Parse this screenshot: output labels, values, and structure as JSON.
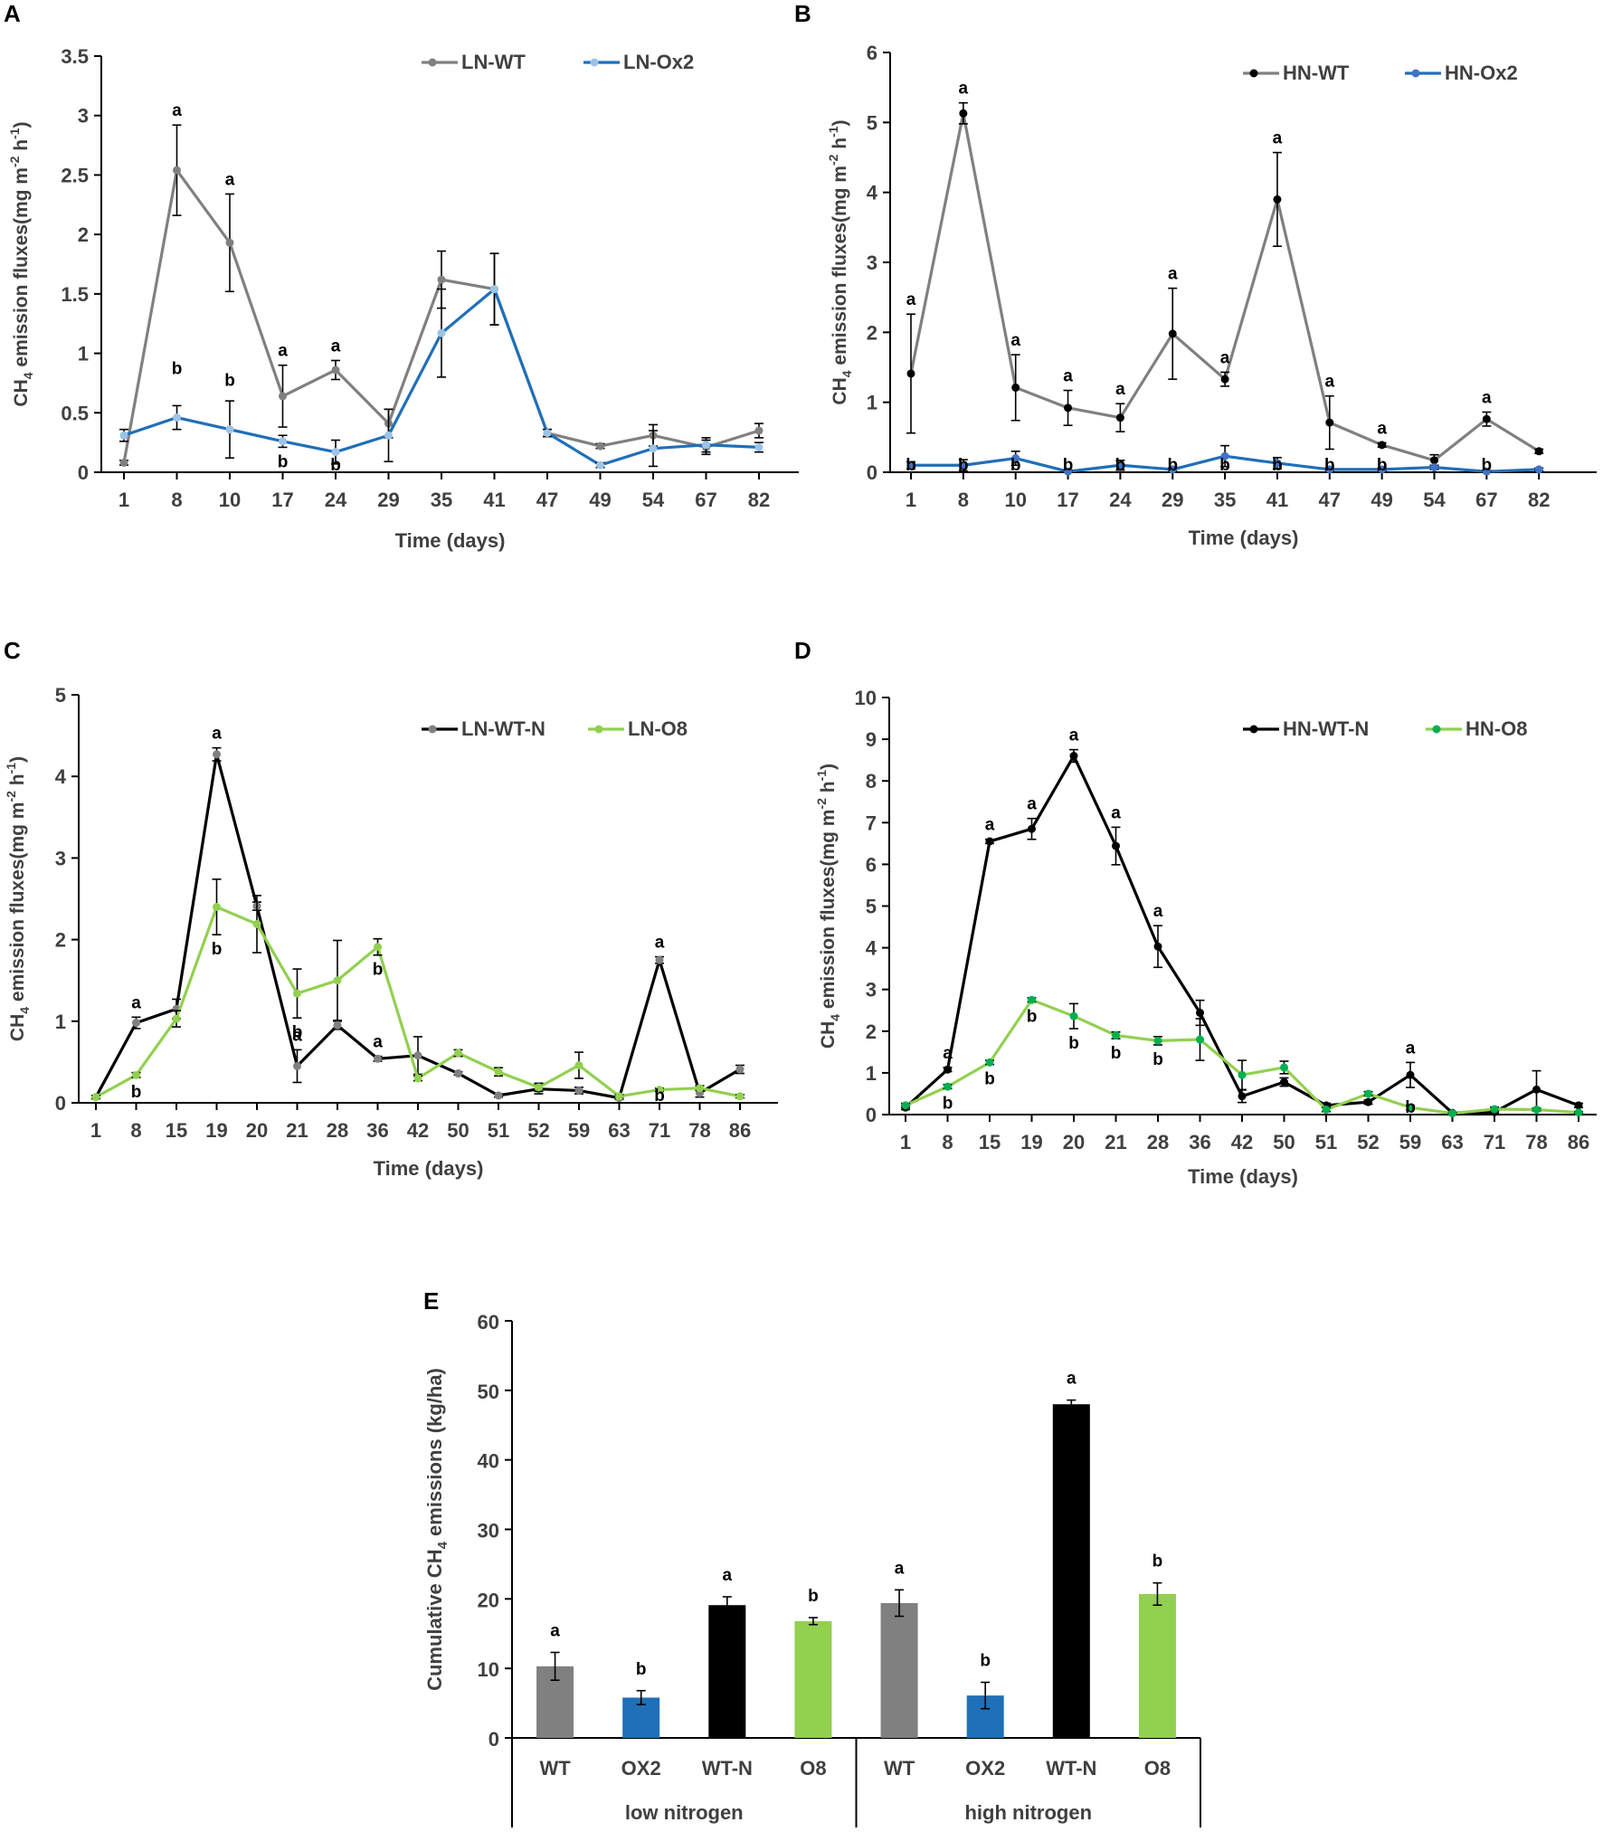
{
  "chart_data": [
    {
      "panel": "A",
      "type": "line",
      "ylabel_main": "CH",
      "ylabel_sub": "4",
      "ylabel_rest": " emission fluxes(mg m",
      "ylabel_sup1": "-2",
      "ylabel_mid": " h",
      "ylabel_sup2": "-1",
      "ylabel_end": ")",
      "xlabel": "Time (days)",
      "ylim": [
        0,
        3.5
      ],
      "yticks": [
        "0",
        "0.5",
        "1",
        "1.5",
        "2",
        "2.5",
        "3",
        "3.5"
      ],
      "categories": [
        "1",
        "8",
        "10",
        "17",
        "24",
        "29",
        "35",
        "41",
        "47",
        "49",
        "54",
        "67",
        "82"
      ],
      "series": [
        {
          "name": "LN-WT",
          "color": "#808080",
          "marker": "#808080",
          "values": [
            0.08,
            2.54,
            1.93,
            0.64,
            0.86,
            0.41,
            1.62,
            1.54,
            0.33,
            0.22,
            0.31,
            0.21,
            0.35
          ],
          "errors": [
            0.02,
            0.38,
            0.41,
            0.26,
            0.08,
            0.12,
            0.24,
            0.3,
            0.03,
            0.02,
            0.09,
            0.06,
            0.06
          ],
          "labels": [
            "",
            "a",
            "a",
            "a",
            "a",
            "",
            "",
            "",
            "",
            "",
            "",
            "",
            ""
          ]
        },
        {
          "name": "LN-Ox2",
          "color": "#1F6FB9",
          "marker": "#9DC3E6",
          "values": [
            0.31,
            0.46,
            0.36,
            0.26,
            0.17,
            0.31,
            1.17,
            1.54,
            0.33,
            0.06,
            0.2,
            0.23,
            0.21
          ],
          "errors": [
            0.05,
            0.1,
            0.24,
            0.05,
            0.1,
            0.22,
            0.37,
            0.3,
            0.03,
            0.02,
            0.15,
            0.06,
            0.04
          ],
          "labels": [
            "",
            "b",
            "b",
            "b",
            "b",
            "",
            "",
            "",
            "",
            "",
            "",
            "",
            ""
          ]
        }
      ]
    },
    {
      "panel": "B",
      "type": "line",
      "ylabel_main": "CH",
      "ylabel_sub": "4",
      "ylabel_rest": " emission fluxes(mg m",
      "ylabel_sup1": "-2",
      "ylabel_mid": " h",
      "ylabel_sup2": "-1",
      "ylabel_end": ")",
      "xlabel": "Time (days)",
      "ylim": [
        0,
        6
      ],
      "yticks": [
        "0",
        "1",
        "2",
        "3",
        "4",
        "5",
        "6"
      ],
      "categories": [
        "1",
        "8",
        "10",
        "17",
        "24",
        "29",
        "35",
        "41",
        "47",
        "49",
        "54",
        "67",
        "82"
      ],
      "series": [
        {
          "name": "HN-WT",
          "color": "#808080",
          "marker": "#000000",
          "values": [
            1.41,
            5.13,
            1.21,
            0.92,
            0.78,
            1.98,
            1.33,
            3.9,
            0.71,
            0.39,
            0.17,
            0.76,
            0.3
          ],
          "errors": [
            0.85,
            0.15,
            0.47,
            0.25,
            0.2,
            0.65,
            0.1,
            0.67,
            0.38,
            0.03,
            0.08,
            0.1,
            0.03
          ],
          "labels": [
            "a",
            "a",
            "a",
            "a",
            "a",
            "a",
            "a",
            "a",
            "a",
            "a",
            "",
            "a",
            ""
          ]
        },
        {
          "name": "HN-Ox2",
          "color": "#1F6FB9",
          "marker": "#4472C4",
          "values": [
            0.1,
            0.1,
            0.2,
            0.01,
            0.1,
            0.04,
            0.23,
            0.13,
            0.04,
            0.04,
            0.07,
            0.01,
            0.04
          ],
          "errors": [
            0.05,
            0.08,
            0.1,
            0.02,
            0.07,
            0.02,
            0.15,
            0.08,
            0.02,
            0.02,
            0.03,
            0.01,
            0.02
          ],
          "labels": [
            "b",
            "b",
            "b",
            "b",
            "b",
            "b",
            "b",
            "b",
            "b",
            "b",
            "",
            "b",
            ""
          ]
        }
      ]
    },
    {
      "panel": "C",
      "type": "line",
      "ylabel_main": "CH",
      "ylabel_sub": "4",
      "ylabel_rest": " emission fluxes(mg m",
      "ylabel_sup1": "-2",
      "ylabel_mid": " h",
      "ylabel_sup2": "-1",
      "ylabel_end": ")",
      "xlabel": "Time (days)",
      "ylim": [
        0,
        5
      ],
      "yticks": [
        "0",
        "1",
        "2",
        "3",
        "4",
        "5"
      ],
      "categories": [
        "1",
        "8",
        "15",
        "19",
        "20",
        "21",
        "28",
        "36",
        "42",
        "50",
        "51",
        "52",
        "59",
        "63",
        "71",
        "78",
        "86"
      ],
      "series": [
        {
          "name": "LN-WT-N",
          "color": "#000000",
          "marker": "#808080",
          "values": [
            0.07,
            0.98,
            1.15,
            4.27,
            2.41,
            0.45,
            0.95,
            0.54,
            0.58,
            0.36,
            0.09,
            0.17,
            0.15,
            0.06,
            1.75,
            0.12,
            0.41
          ],
          "errors": [
            0.02,
            0.07,
            0.12,
            0.08,
            0.05,
            0.2,
            0.05,
            0.03,
            0.23,
            0.02,
            0.02,
            0.06,
            0.04,
            0.02,
            0.04,
            0.05,
            0.05
          ],
          "labels": [
            "",
            "a",
            "",
            "a",
            "",
            "a",
            "",
            "a",
            "",
            "",
            "",
            "",
            "",
            "",
            "a",
            "",
            ""
          ]
        },
        {
          "name": "LN-O8",
          "color": "#92D050",
          "marker": "#92D050",
          "values": [
            0.07,
            0.34,
            1.03,
            2.4,
            2.19,
            1.34,
            1.5,
            1.91,
            0.3,
            0.61,
            0.38,
            0.19,
            0.46,
            0.08,
            0.16,
            0.18,
            0.08
          ],
          "errors": [
            0.02,
            0.03,
            0.1,
            0.34,
            0.35,
            0.3,
            0.49,
            0.1,
            0.03,
            0.04,
            0.05,
            0.05,
            0.16,
            0.02,
            0.02,
            0.03,
            0.02
          ],
          "labels": [
            "",
            "b",
            "",
            "b",
            "",
            "b",
            "",
            "b",
            "",
            "",
            "",
            "",
            "",
            "",
            "b",
            "",
            ""
          ]
        }
      ]
    },
    {
      "panel": "D",
      "type": "line",
      "ylabel_main": "CH",
      "ylabel_sub": "4",
      "ylabel_rest": " emission fluxes(mg m",
      "ylabel_sup1": "-2",
      "ylabel_mid": " h",
      "ylabel_sup2": "-1",
      "ylabel_end": ")",
      "xlabel": "Time (days)",
      "ylim": [
        0,
        10
      ],
      "yticks": [
        "0",
        "1",
        "2",
        "3",
        "4",
        "5",
        "6",
        "7",
        "8",
        "9",
        "10"
      ],
      "categories": [
        "1",
        "8",
        "15",
        "19",
        "20",
        "21",
        "28",
        "36",
        "42",
        "50",
        "51",
        "52",
        "59",
        "63",
        "71",
        "78",
        "86"
      ],
      "series": [
        {
          "name": "HN-WT-N",
          "color": "#000000",
          "marker": "#000000",
          "values": [
            0.17,
            1.08,
            6.55,
            6.85,
            8.6,
            6.44,
            4.03,
            2.44,
            0.44,
            0.78,
            0.22,
            0.3,
            0.95,
            0.04,
            0.06,
            0.6,
            0.22
          ],
          "errors": [
            0.05,
            0.05,
            0.05,
            0.25,
            0.15,
            0.45,
            0.5,
            0.3,
            0.15,
            0.1,
            0.05,
            0.05,
            0.3,
            0.02,
            0.02,
            0.45,
            0.05
          ],
          "labels": [
            "",
            "a",
            "a",
            "a",
            "a",
            "a",
            "a",
            "",
            "",
            "",
            "",
            "",
            "a",
            "",
            "",
            "",
            ""
          ]
        },
        {
          "name": "HN-O8",
          "color": "#92D050",
          "marker": "#00B050",
          "values": [
            0.22,
            0.67,
            1.25,
            2.75,
            2.36,
            1.9,
            1.77,
            1.8,
            0.95,
            1.13,
            0.12,
            0.5,
            0.17,
            0.03,
            0.13,
            0.12,
            0.05
          ],
          "errors": [
            0.05,
            0.05,
            0.05,
            0.05,
            0.3,
            0.08,
            0.1,
            0.5,
            0.35,
            0.15,
            0.05,
            0.05,
            0.05,
            0.02,
            0.05,
            0.03,
            0.02
          ],
          "labels": [
            "",
            "b",
            "b",
            "b",
            "b",
            "b",
            "b",
            "",
            "",
            "",
            "",
            "",
            "b",
            "",
            "",
            "",
            ""
          ]
        }
      ]
    },
    {
      "panel": "E",
      "type": "bar",
      "ylabel_pre": "Cumulative CH",
      "ylabel_sub": "4",
      "ylabel_post": " emissions (kg/ha)",
      "ylim": [
        0,
        60
      ],
      "yticks": [
        "0",
        "10",
        "20",
        "30",
        "40",
        "50",
        "60"
      ],
      "categories": [
        "WT",
        "OX2",
        "WT-N",
        "O8",
        "WT",
        "OX2",
        "WT-N",
        "O8"
      ],
      "groups": [
        "low nitrogen",
        "high nitrogen"
      ],
      "values": [
        10.3,
        5.8,
        19.1,
        16.8,
        19.4,
        6.1,
        48.0,
        20.7
      ],
      "errors": [
        2.0,
        1.0,
        1.2,
        0.5,
        1.9,
        1.9,
        0.6,
        1.6
      ],
      "colors": [
        "#808080",
        "#1F6FB9",
        "#000000",
        "#92D050",
        "#808080",
        "#1F6FB9",
        "#000000",
        "#92D050"
      ],
      "labels": [
        "a",
        "b",
        "a",
        "b",
        "a",
        "b",
        "a",
        "b"
      ]
    }
  ]
}
